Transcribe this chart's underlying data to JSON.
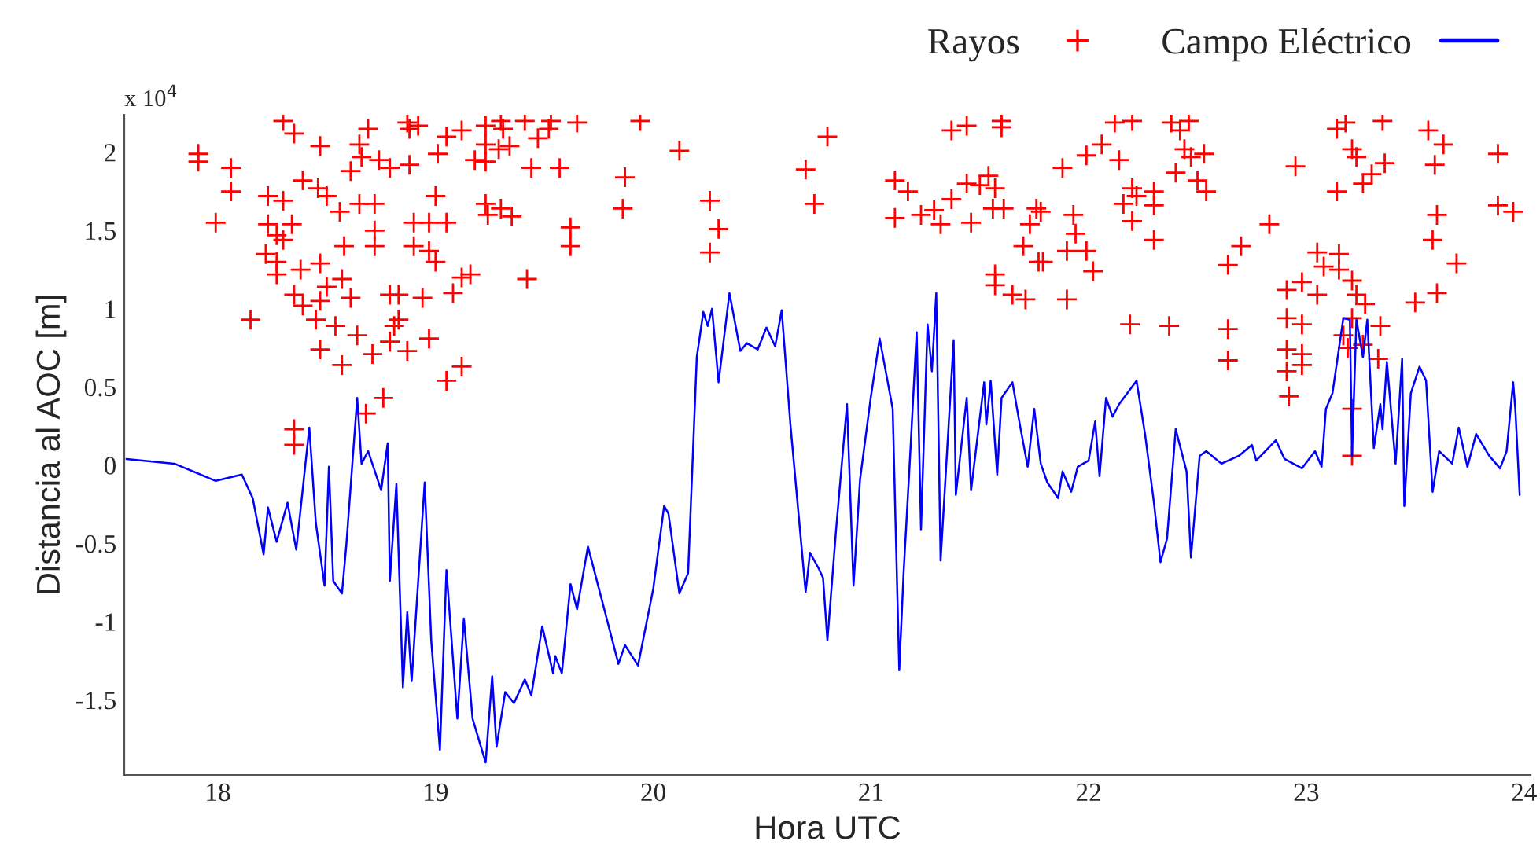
{
  "chart_data": {
    "type": "line",
    "xlabel": "Hora UTC",
    "ylabel": "Distancia al AOC [m]",
    "annotations": [
      "x 10$^{4}$"
    ],
    "xlim": [
      17.57,
      24.03
    ],
    "ylim": [
      -1.98,
      2.24
    ],
    "xticks": [
      18,
      19,
      20,
      21,
      22,
      23,
      24
    ],
    "yticks": [
      -1.5,
      -1,
      -0.5,
      0,
      0.5,
      1,
      1.5,
      2
    ],
    "grid": false,
    "legend": "top right",
    "series": [
      {
        "name": "Rayos",
        "type": "scatter",
        "marker": "cross",
        "color": "#ff0000",
        "x": [
          17.91,
          17.91,
          18.06,
          18.06,
          17.99,
          18.15,
          18.3,
          18.35,
          18.47,
          18.39,
          18.46,
          18.5,
          18.23,
          18.3,
          18.56,
          18.23,
          18.27,
          18.34,
          18.3,
          18.22,
          18.27,
          18.27,
          18.38,
          18.47,
          18.58,
          18.35,
          18.39,
          18.47,
          18.57,
          18.5,
          18.45,
          18.54,
          18.61,
          18.64,
          18.47,
          18.57,
          18.35,
          18.35,
          18.68,
          18.76,
          18.71,
          18.79,
          18.81,
          18.83,
          18.79,
          18.83,
          18.87,
          18.94,
          18.97,
          19.05,
          19.12,
          18.69,
          18.65,
          18.66,
          18.74,
          18.79,
          18.61,
          18.88,
          18.87,
          18.88,
          18.92,
          18.65,
          18.72,
          18.72,
          18.72,
          18.9,
          18.97,
          19.05,
          18.9,
          18.97,
          19.0,
          19.0,
          19.01,
          19.05,
          19.12,
          19.12,
          19.16,
          19.08,
          19.18,
          19.23,
          19.23,
          19.29,
          19.23,
          19.3,
          19.31,
          19.34,
          19.23,
          19.24,
          19.3,
          19.35,
          19.41,
          19.44,
          19.47,
          19.53,
          19.52,
          19.57,
          19.65,
          19.62,
          19.62,
          19.42,
          19.94,
          19.87,
          19.86,
          20.12,
          20.26,
          20.3,
          20.26,
          20.7,
          20.8,
          20.74,
          21.11,
          21.17,
          21.11,
          21.23,
          21.32,
          21.29,
          21.37,
          21.37,
          21.44,
          21.6,
          21.6,
          21.46,
          21.44,
          21.5,
          21.54,
          21.57,
          21.56,
          21.61,
          21.73,
          21.7,
          21.77,
          21.76,
          21.57,
          21.57,
          21.65,
          21.71,
          21.78,
          21.79,
          21.93,
          21.94,
          21.9,
          21.99,
          22.02,
          21.9,
          21.88,
          21.99,
          22.06,
          22.12,
          22.2,
          22.14,
          22.2,
          22.22,
          22.3,
          22.16,
          22.3,
          22.2,
          22.3,
          22.19,
          22.37,
          22.38,
          22.42,
          22.46,
          22.44,
          22.47,
          22.53,
          22.4,
          22.5,
          22.54,
          22.83,
          22.7,
          22.64,
          22.64,
          22.64,
          22.95,
          23.14,
          23.26,
          23.3,
          23.36,
          23.14,
          23.18,
          23.21,
          23.23,
          23.35,
          23.56,
          23.63,
          23.59,
          23.88,
          23.88,
          23.95,
          23.6,
          23.58,
          23.69,
          23.6,
          23.5,
          23.05,
          23.15,
          23.08,
          23.15,
          23.21,
          23.23,
          23.27,
          22.98,
          22.91,
          23.05,
          22.91,
          22.98,
          23.34,
          22.91,
          22.98,
          22.98,
          22.91,
          22.92,
          23.17,
          23.19,
          23.26,
          23.33,
          23.21,
          23.21,
          23.21
        ],
        "values": [
          1.99,
          1.94,
          1.9,
          1.75,
          1.55,
          0.93,
          2.2,
          2.12,
          2.04,
          1.82,
          1.77,
          1.72,
          1.72,
          1.69,
          1.62,
          1.54,
          1.47,
          1.54,
          1.44,
          1.35,
          1.3,
          1.22,
          1.25,
          1.29,
          1.4,
          1.09,
          1.02,
          1.05,
          1.19,
          1.14,
          0.93,
          0.89,
          1.07,
          0.83,
          0.74,
          0.64,
          0.23,
          0.13,
          0.33,
          0.43,
          0.71,
          0.79,
          0.89,
          0.93,
          1.09,
          1.09,
          0.73,
          1.07,
          0.81,
          0.54,
          0.63,
          2.15,
          2.05,
          1.97,
          1.95,
          1.9,
          1.88,
          1.92,
          2.19,
          2.15,
          2.17,
          1.67,
          1.67,
          1.5,
          1.4,
          1.55,
          1.55,
          1.55,
          1.4,
          1.37,
          1.3,
          1.72,
          1.99,
          2.1,
          2.14,
          1.2,
          1.22,
          1.1,
          1.95,
          2.17,
          2.05,
          2.02,
          1.94,
          2.2,
          2.15,
          2.04,
          1.67,
          1.6,
          1.64,
          1.59,
          2.2,
          1.9,
          2.09,
          2.2,
          2.15,
          1.9,
          2.19,
          1.52,
          1.4,
          1.19,
          2.2,
          1.84,
          1.64,
          2.01,
          1.69,
          1.51,
          1.36,
          1.89,
          2.1,
          1.67,
          1.82,
          1.75,
          1.58,
          1.6,
          1.54,
          1.63,
          1.7,
          2.14,
          2.17,
          2.2,
          2.16,
          1.55,
          1.8,
          1.79,
          1.85,
          1.77,
          1.64,
          1.64,
          1.54,
          1.4,
          1.3,
          1.64,
          1.22,
          1.15,
          1.09,
          1.06,
          1.62,
          1.3,
          1.6,
          1.48,
          1.37,
          1.37,
          1.24,
          1.06,
          1.9,
          1.98,
          2.05,
          2.19,
          2.2,
          1.95,
          1.77,
          1.72,
          1.75,
          1.67,
          1.66,
          1.56,
          1.44,
          0.9,
          0.89,
          2.19,
          2.14,
          2.2,
          2.02,
          1.97,
          1.99,
          1.87,
          1.82,
          1.75,
          1.54,
          1.4,
          1.28,
          0.87,
          0.67,
          1.91,
          1.75,
          1.8,
          1.86,
          1.93,
          2.15,
          2.19,
          2.02,
          1.97,
          2.2,
          2.14,
          2.05,
          1.92,
          1.99,
          1.66,
          1.62,
          1.6,
          1.44,
          1.29,
          1.1,
          1.04,
          1.36,
          1.35,
          1.27,
          1.25,
          1.18,
          1.09,
          1.03,
          1.17,
          1.12,
          1.09,
          0.94,
          0.9,
          0.89,
          0.74,
          0.71,
          0.64,
          0.6,
          0.44,
          0.83,
          0.75,
          0.77,
          0.68,
          0.36,
          0.06,
          0.94
        ]
      },
      {
        "name": "Campo Eléctrico",
        "marker": "none",
        "line_style": "solid",
        "color": "#0000ff",
        "x": [
          17.58,
          17.8,
          17.99,
          18.11,
          18.16,
          18.21,
          18.23,
          18.27,
          18.32,
          18.36,
          18.42,
          18.45,
          18.49,
          18.51,
          18.53,
          18.57,
          18.59,
          18.64,
          18.66,
          18.69,
          18.75,
          18.78,
          18.79,
          18.82,
          18.85,
          18.87,
          18.89,
          18.95,
          18.98,
          19.02,
          19.05,
          19.1,
          19.13,
          19.17,
          19.23,
          19.26,
          19.28,
          19.32,
          19.36,
          19.41,
          19.44,
          19.49,
          19.54,
          19.55,
          19.58,
          19.62,
          19.65,
          19.7,
          19.76,
          19.84,
          19.87,
          19.93,
          20.0,
          20.05,
          20.07,
          20.12,
          20.16,
          20.2,
          20.23,
          20.25,
          20.27,
          20.3,
          20.35,
          20.4,
          20.43,
          20.48,
          20.52,
          20.56,
          20.59,
          20.63,
          20.7,
          20.72,
          20.76,
          20.78,
          20.8,
          20.84,
          20.89,
          20.92,
          20.95,
          21.0,
          21.04,
          21.1,
          21.13,
          21.15,
          21.18,
          21.21,
          21.23,
          21.26,
          21.28,
          21.3,
          21.32,
          21.38,
          21.39,
          21.44,
          21.46,
          21.52,
          21.53,
          21.55,
          21.58,
          21.6,
          21.65,
          21.68,
          21.72,
          21.75,
          21.78,
          21.81,
          21.86,
          21.88,
          21.92,
          21.95,
          22.0,
          22.03,
          22.05,
          22.08,
          22.11,
          22.14,
          22.22,
          22.26,
          22.3,
          22.33,
          22.36,
          22.4,
          22.45,
          22.47,
          22.51,
          22.54,
          22.61,
          22.69,
          22.75,
          22.77,
          22.86,
          22.9,
          22.98,
          23.04,
          23.07,
          23.09,
          23.12,
          23.17,
          23.2,
          23.21,
          23.23,
          23.26,
          23.28,
          23.31,
          23.34,
          23.35,
          23.37,
          23.41,
          23.44,
          23.45,
          23.48,
          23.52,
          23.55,
          23.58,
          23.61,
          23.67,
          23.7,
          23.74,
          23.78,
          23.84,
          23.89,
          23.92,
          23.95,
          23.96,
          23.98
        ],
        "values": [
          0.04,
          0.01,
          -0.1,
          -0.06,
          -0.21,
          -0.57,
          -0.27,
          -0.49,
          -0.24,
          -0.54,
          0.24,
          -0.37,
          -0.77,
          -0.01,
          -0.74,
          -0.82,
          -0.51,
          0.43,
          0.01,
          0.09,
          -0.16,
          0.14,
          -0.74,
          -0.12,
          -1.42,
          -0.94,
          -1.38,
          -0.11,
          -1.12,
          -1.82,
          -0.67,
          -1.62,
          -0.98,
          -1.62,
          -1.9,
          -1.35,
          -1.8,
          -1.45,
          -1.52,
          -1.37,
          -1.47,
          -1.03,
          -1.33,
          -1.22,
          -1.33,
          -0.76,
          -0.92,
          -0.52,
          -0.84,
          -1.27,
          -1.15,
          -1.28,
          -0.79,
          -0.26,
          -0.31,
          -0.82,
          -0.69,
          0.69,
          0.98,
          0.89,
          1.0,
          0.53,
          1.1,
          0.73,
          0.78,
          0.74,
          0.88,
          0.76,
          0.99,
          0.26,
          -0.81,
          -0.56,
          -0.66,
          -0.72,
          -1.12,
          -0.41,
          0.39,
          -0.77,
          -0.09,
          0.44,
          0.81,
          0.36,
          -1.31,
          -0.69,
          0.06,
          0.85,
          -0.41,
          0.9,
          0.6,
          1.1,
          -0.61,
          0.8,
          -0.19,
          0.43,
          -0.16,
          0.53,
          0.26,
          0.54,
          -0.06,
          0.43,
          0.53,
          0.29,
          -0.01,
          0.36,
          0.01,
          -0.11,
          -0.21,
          -0.04,
          -0.17,
          -0.01,
          0.03,
          0.28,
          -0.07,
          0.43,
          0.31,
          0.39,
          0.54,
          0.19,
          -0.24,
          -0.62,
          -0.47,
          0.23,
          -0.04,
          -0.59,
          0.06,
          0.09,
          0.01,
          0.06,
          0.13,
          0.03,
          0.16,
          0.04,
          -0.02,
          0.09,
          -0.01,
          0.36,
          0.46,
          0.94,
          0.93,
          0.06,
          0.93,
          0.69,
          0.93,
          0.11,
          0.39,
          0.23,
          0.66,
          0.01,
          0.68,
          -0.26,
          0.46,
          0.63,
          0.54,
          -0.17,
          0.09,
          0.01,
          0.24,
          -0.01,
          0.2,
          0.06,
          -0.02,
          0.09,
          0.53,
          0.36,
          -0.19
        ]
      }
    ]
  }
}
